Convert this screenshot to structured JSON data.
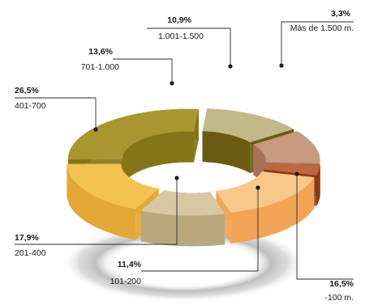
{
  "chart_data": {
    "type": "pie",
    "style": "3d-donut-exploded",
    "categories": [
      "-100 m.",
      "101-200",
      "201-400",
      "401-700",
      "701-1.000",
      "1.001-1.500",
      "Más de 1.500 m."
    ],
    "values": [
      16.5,
      11.4,
      17.9,
      26.5,
      13.6,
      10.9,
      3.3
    ],
    "labels": [
      "16,5%",
      "11,4%",
      "17,9%",
      "26,5%",
      "13,6%",
      "10,9%",
      "3,3%"
    ],
    "colors": [
      "#f9c78a",
      "#d7c8a3",
      "#f2c252",
      "#a89630",
      "#c3b88a",
      "#c89a80",
      "#c0663e"
    ],
    "side_colors": [
      "#f2a457",
      "#b9a87e",
      "#e3a838",
      "#857519",
      "#6b5a12",
      "#a7725a",
      "#8a3a1a"
    ]
  }
}
